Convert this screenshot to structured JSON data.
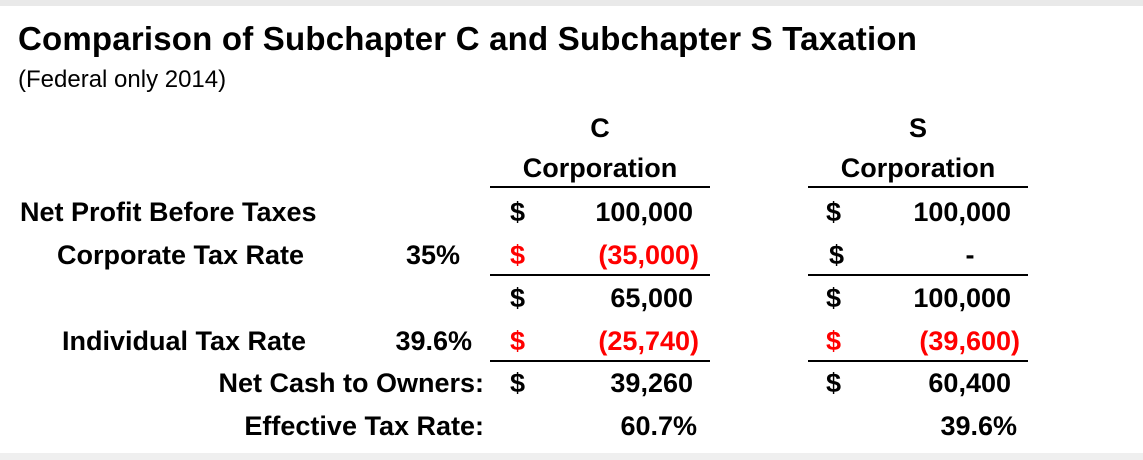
{
  "header": {
    "title": "Comparison of Subchapter C and Subchapter S Taxation",
    "subtitle": "(Federal only 2014)"
  },
  "columns": {
    "c": {
      "line1": "C",
      "line2": "Corporation"
    },
    "s": {
      "line1": "S",
      "line2": "Corporation"
    }
  },
  "rows": {
    "net_profit": {
      "label": "Net Profit Before Taxes",
      "c_sign": "$",
      "c_value": "100,000",
      "s_sign": "$",
      "s_value": "100,000"
    },
    "corp_tax": {
      "label": "Corporate Tax Rate",
      "rate": "35%",
      "c_sign": "$",
      "c_value": "(35,000)",
      "s_sign": "$",
      "s_value": "-"
    },
    "after_corp": {
      "c_sign": "$",
      "c_value": "65,000",
      "s_sign": "$",
      "s_value": "100,000"
    },
    "indiv_tax": {
      "label": "Individual Tax Rate",
      "rate": "39.6%",
      "c_sign": "$",
      "c_value": "(25,740)",
      "s_sign": "$",
      "s_value": "(39,600)"
    },
    "net_cash": {
      "label": "Net Cash to Owners:",
      "c_sign": "$",
      "c_value": "39,260",
      "s_sign": "$",
      "s_value": "60,400"
    },
    "effective": {
      "label": "Effective Tax Rate:",
      "c_value": "60.7%",
      "s_value": "39.6%"
    }
  },
  "colors": {
    "negative": "#ff0000",
    "text": "#000000"
  }
}
